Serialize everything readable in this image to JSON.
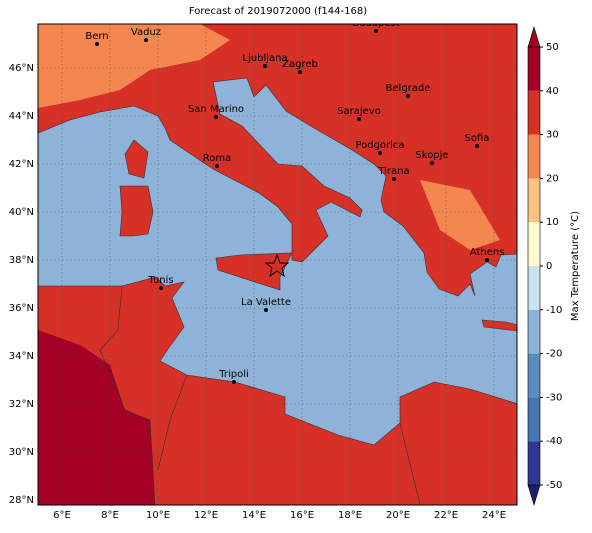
{
  "title": "Forecast of 2019072000 (f144-168)",
  "map": {
    "xticks": [
      "6°E",
      "8°E",
      "10°E",
      "12°E",
      "14°E",
      "16°E",
      "18°E",
      "20°E",
      "22°E",
      "24°E"
    ],
    "yticks": [
      "46°N",
      "44°N",
      "42°N",
      "40°N",
      "38°N",
      "36°N",
      "34°N",
      "32°N",
      "30°N",
      "28°N"
    ]
  },
  "cities": [
    "Bern",
    "Vaduz",
    "Budapest",
    "Ljubljana",
    "Zagreb",
    "Belgrade",
    "San Marino",
    "Sarajevo",
    "Sofia",
    "Podgorica",
    "Skopje",
    "Roma",
    "Tirana",
    "Athens",
    "Tunis",
    "La Valette",
    "Tripoli"
  ],
  "colorbar": {
    "label": "Max Temperature (°C)",
    "lim": [
      -50,
      50
    ],
    "ticks": [
      -50,
      -40,
      -30,
      -20,
      -10,
      0,
      10,
      20,
      30,
      40,
      50
    ],
    "colors": [
      "#313695",
      "#4575b4",
      "#5b8cc0",
      "#8fb3d8",
      "#c9e3ef",
      "#fffbd2",
      "#fdc27c",
      "#f4874f",
      "#d73027",
      "#a50026"
    ]
  }
}
